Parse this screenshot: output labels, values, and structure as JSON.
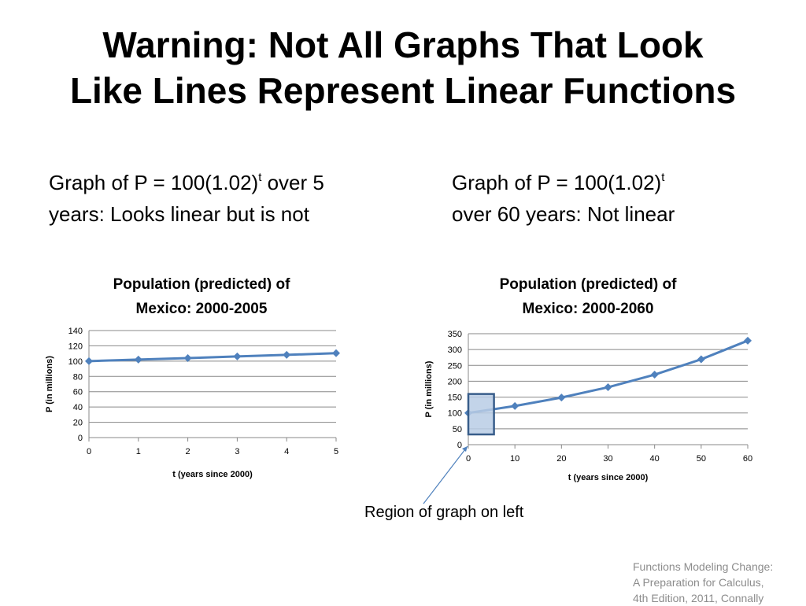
{
  "slide": {
    "title_lines": [
      "Warning: Not All Graphs That Look",
      "Like Lines Represent Linear Functions"
    ],
    "left_caption": {
      "prefix": "Graph of P = 100(1.02)",
      "superscript": "t",
      "suffix_line1": " over 5",
      "line2": "years: Looks linear but is not"
    },
    "right_caption": {
      "prefix": "Graph of P = 100(1.02)",
      "superscript": "t",
      "line2": "over 60 years: Not linear"
    },
    "annotation": "Region of graph on left",
    "source_lines": [
      "Functions Modeling Change:",
      "A Preparation for Calculus,",
      "4th Edition, 2011, Connally"
    ]
  },
  "colors": {
    "series": "#4f81bd",
    "highlight_fill": "#b9cde5",
    "highlight_stroke": "#385d8a",
    "gridline": "#888888",
    "source_text": "#8c8c8c"
  },
  "chart_data": [
    {
      "type": "line",
      "title_lines": [
        "Population (predicted) of",
        "Mexico: 2000-2005"
      ],
      "xlabel": "t (years since 2000)",
      "ylabel": "P (in millions)",
      "x": [
        0,
        1,
        2,
        3,
        4,
        5
      ],
      "values": [
        100,
        102,
        104,
        106.1,
        108.2,
        110.4
      ],
      "xticks": [
        0,
        1,
        2,
        3,
        4,
        5
      ],
      "yticks": [
        0,
        20,
        40,
        60,
        80,
        100,
        120,
        140
      ],
      "xlim": [
        0,
        5
      ],
      "ylim": [
        0,
        140
      ],
      "grid": true,
      "legend": "none"
    },
    {
      "type": "line",
      "title_lines": [
        "Population (predicted) of",
        "Mexico: 2000-2060"
      ],
      "xlabel": "t (years since 2000)",
      "ylabel": "P (in millions)",
      "x": [
        0,
        10,
        20,
        30,
        40,
        50,
        60
      ],
      "values": [
        100,
        121.9,
        148.6,
        181.1,
        220.8,
        269.2,
        328.1
      ],
      "xticks": [
        0,
        10,
        20,
        30,
        40,
        50,
        60
      ],
      "yticks": [
        0,
        50,
        100,
        150,
        200,
        250,
        300,
        350
      ],
      "xlim": [
        0,
        60
      ],
      "ylim": [
        0,
        350
      ],
      "grid": true,
      "legend": "none",
      "highlight_region": {
        "x": [
          0,
          5
        ],
        "y": [
          0,
          140
        ]
      }
    }
  ]
}
